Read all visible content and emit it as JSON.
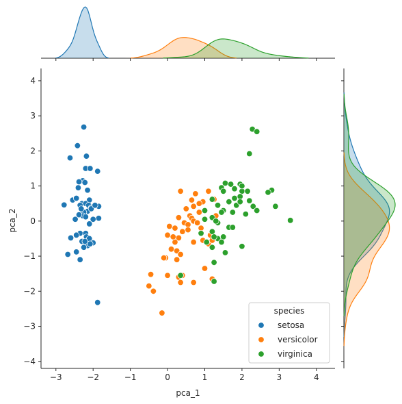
{
  "chart_data": {
    "type": "scatter",
    "subtype": "jointplot",
    "title": "",
    "xlabel": "pca_1",
    "ylabel": "pca_2",
    "xlim": [
      -3.4,
      4.5
    ],
    "ylim": [
      -4.2,
      4.35
    ],
    "xticks": [
      "−3",
      "−2",
      "−1",
      "0",
      "1",
      "2",
      "3",
      "4"
    ],
    "xtick_values": [
      -3,
      -2,
      -1,
      0,
      1,
      2,
      3,
      4
    ],
    "yticks": [
      "−4",
      "−3",
      "−2",
      "−1",
      "0",
      "1",
      "2",
      "3",
      "4"
    ],
    "ytick_values": [
      -4,
      -3,
      -2,
      -1,
      0,
      1,
      2,
      3,
      4
    ],
    "grid": false,
    "marginals": "kde (top: pca_1 by species, right: pca_2 by species)",
    "legend": {
      "title": "species",
      "placement": "lower right",
      "entries": [
        "setosa",
        "versicolor",
        "virginica"
      ]
    },
    "colors": {
      "setosa": "#1f77b4",
      "versicolor": "#ff7f0e",
      "virginica": "#2ca02c"
    },
    "series": [
      {
        "name": "setosa",
        "points": [
          [
            -2.25,
            2.68
          ],
          [
            -2.42,
            2.15
          ],
          [
            -2.62,
            1.8
          ],
          [
            -2.18,
            1.85
          ],
          [
            -2.2,
            1.5
          ],
          [
            -2.08,
            1.5
          ],
          [
            -1.88,
            1.42
          ],
          [
            -2.28,
            1.15
          ],
          [
            -2.38,
            1.12
          ],
          [
            -2.22,
            1.1
          ],
          [
            -2.4,
            0.95
          ],
          [
            -2.15,
            0.88
          ],
          [
            -2.1,
            0.6
          ],
          [
            -2.55,
            0.6
          ],
          [
            -2.3,
            0.5
          ],
          [
            -2.2,
            0.5
          ],
          [
            -2.12,
            0.45
          ],
          [
            -2.35,
            0.45
          ],
          [
            -1.85,
            0.42
          ],
          [
            -2.78,
            0.46
          ],
          [
            -2.45,
            0.65
          ],
          [
            -2.05,
            0.38
          ],
          [
            -2.15,
            0.28
          ],
          [
            -2.25,
            0.25
          ],
          [
            -2.28,
            0.15
          ],
          [
            -2.2,
            0.12
          ],
          [
            -2.48,
            0.05
          ],
          [
            -1.85,
            0.08
          ],
          [
            -2.0,
            0.05
          ],
          [
            -2.1,
            -0.08
          ],
          [
            -2.35,
            -0.35
          ],
          [
            -2.2,
            -0.35
          ],
          [
            -2.45,
            -0.4
          ],
          [
            -2.18,
            -0.45
          ],
          [
            -2.1,
            -0.5
          ],
          [
            -2.6,
            -0.48
          ],
          [
            -2.3,
            -0.58
          ],
          [
            -2.0,
            -0.62
          ],
          [
            -2.15,
            -0.7
          ],
          [
            -2.25,
            -0.75
          ],
          [
            -2.08,
            -0.65
          ],
          [
            -2.45,
            -0.88
          ],
          [
            -2.68,
            -0.95
          ],
          [
            -2.35,
            -1.1
          ],
          [
            -1.88,
            -2.32
          ],
          [
            -2.05,
            0.35
          ],
          [
            -1.95,
            0.45
          ],
          [
            -2.32,
            0.35
          ],
          [
            -2.22,
            -0.58
          ],
          [
            -2.38,
            0.18
          ]
        ]
      },
      {
        "name": "versicolor",
        "points": [
          [
            0.35,
            0.85
          ],
          [
            0.75,
            0.78
          ],
          [
            1.1,
            0.85
          ],
          [
            0.95,
            0.55
          ],
          [
            0.65,
            0.6
          ],
          [
            0.7,
            0.42
          ],
          [
            0.5,
            0.35
          ],
          [
            0.85,
            0.25
          ],
          [
            0.6,
            0.15
          ],
          [
            0.3,
            0.1
          ],
          [
            0.65,
            0.08
          ],
          [
            0.7,
            0.0
          ],
          [
            0.45,
            -0.05
          ],
          [
            0.05,
            -0.15
          ],
          [
            0.2,
            -0.2
          ],
          [
            0.55,
            -0.1
          ],
          [
            0.9,
            -0.2
          ],
          [
            0.4,
            -0.3
          ],
          [
            0.0,
            -0.4
          ],
          [
            0.3,
            -0.48
          ],
          [
            0.7,
            -0.6
          ],
          [
            0.2,
            -0.6
          ],
          [
            0.95,
            -0.55
          ],
          [
            0.1,
            -0.8
          ],
          [
            0.25,
            -0.85
          ],
          [
            0.35,
            -0.95
          ],
          [
            -0.05,
            -1.05
          ],
          [
            -0.1,
            -1.05
          ],
          [
            0.25,
            -1.1
          ],
          [
            0.0,
            -1.55
          ],
          [
            -0.45,
            -1.52
          ],
          [
            -0.5,
            -1.85
          ],
          [
            -0.38,
            -2.0
          ],
          [
            0.3,
            -1.6
          ],
          [
            0.4,
            -1.55
          ],
          [
            0.35,
            -1.75
          ],
          [
            0.7,
            -1.75
          ],
          [
            -0.15,
            -2.62
          ],
          [
            1.0,
            -1.35
          ],
          [
            1.1,
            -0.65
          ],
          [
            1.2,
            -0.55
          ],
          [
            1.15,
            -0.4
          ],
          [
            1.25,
            0.62
          ],
          [
            1.35,
            0.45
          ],
          [
            1.3,
            0.15
          ],
          [
            0.85,
            0.5
          ],
          [
            0.55,
            -0.25
          ],
          [
            0.15,
            -0.45
          ],
          [
            0.8,
            -0.05
          ],
          [
            1.2,
            -1.65
          ]
        ]
      },
      {
        "name": "virginica",
        "points": [
          [
            2.28,
            2.62
          ],
          [
            2.4,
            2.55
          ],
          [
            2.2,
            1.92
          ],
          [
            1.55,
            1.08
          ],
          [
            1.7,
            1.05
          ],
          [
            1.95,
            1.05
          ],
          [
            1.8,
            0.92
          ],
          [
            2.0,
            0.85
          ],
          [
            2.8,
            0.88
          ],
          [
            2.7,
            0.82
          ],
          [
            1.45,
            0.95
          ],
          [
            1.2,
            0.62
          ],
          [
            1.35,
            0.45
          ],
          [
            1.5,
            0.3
          ],
          [
            1.65,
            0.55
          ],
          [
            1.8,
            0.65
          ],
          [
            1.85,
            0.45
          ],
          [
            1.95,
            0.7
          ],
          [
            1.95,
            0.55
          ],
          [
            2.2,
            0.58
          ],
          [
            2.3,
            0.42
          ],
          [
            2.4,
            0.3
          ],
          [
            2.9,
            0.42
          ],
          [
            3.3,
            0.02
          ],
          [
            1.45,
            0.25
          ],
          [
            1.2,
            0.1
          ],
          [
            1.0,
            0.05
          ],
          [
            1.35,
            -0.05
          ],
          [
            1.65,
            -0.18
          ],
          [
            1.75,
            -0.18
          ],
          [
            1.2,
            -0.3
          ],
          [
            1.5,
            -0.45
          ],
          [
            1.35,
            -0.5
          ],
          [
            1.25,
            -0.45
          ],
          [
            1.05,
            -0.6
          ],
          [
            1.45,
            -0.6
          ],
          [
            1.2,
            -0.75
          ],
          [
            1.55,
            -0.9
          ],
          [
            2.0,
            -0.72
          ],
          [
            0.35,
            -1.55
          ],
          [
            1.25,
            -1.18
          ],
          [
            1.25,
            -1.72
          ],
          [
            0.9,
            -0.35
          ],
          [
            1.0,
            0.3
          ],
          [
            2.15,
            0.85
          ],
          [
            2.0,
            1.0
          ],
          [
            1.5,
            0.85
          ],
          [
            1.75,
            0.25
          ],
          [
            2.1,
            0.2
          ],
          [
            1.3,
            0.0
          ]
        ]
      }
    ]
  }
}
